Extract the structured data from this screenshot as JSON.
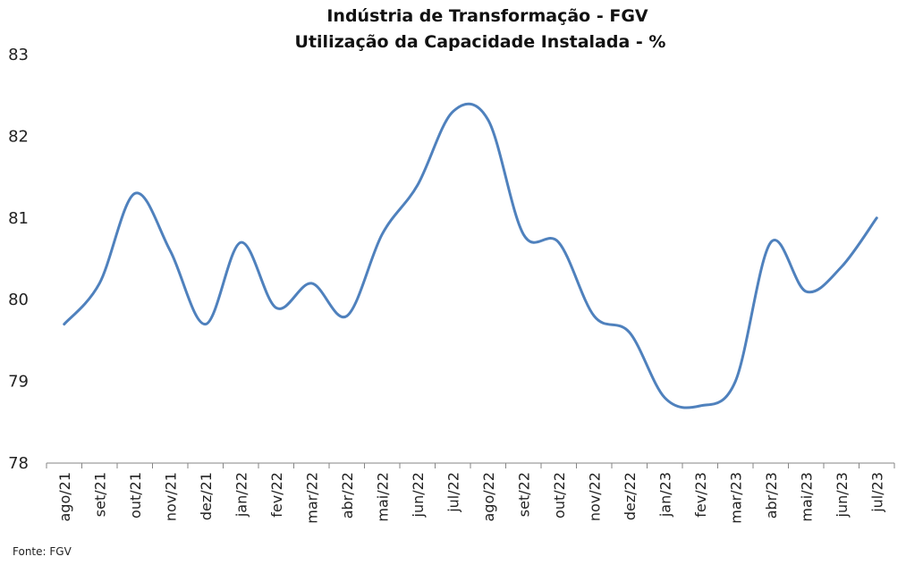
{
  "chart_data": {
    "type": "line",
    "title_lines": [
      "Indústria de Transformação - FGV",
      "Utilização da Capacidade Instalada - %"
    ],
    "xlabel": "",
    "ylabel": "",
    "categories": [
      "ago/21",
      "set/21",
      "out/21",
      "nov/21",
      "dez/21",
      "jan/22",
      "fev/22",
      "mar/22",
      "abr/22",
      "mai/22",
      "jun/22",
      "jul/22",
      "ago/22",
      "set/22",
      "out/22",
      "nov/22",
      "dez/22",
      "jan/23",
      "fev/23",
      "mar/23",
      "abr/23",
      "mai/23",
      "jun/23",
      "jul/23"
    ],
    "series": [
      {
        "values": [
          79.7,
          80.2,
          81.3,
          80.6,
          79.7,
          80.7,
          79.9,
          80.2,
          79.8,
          80.8,
          81.4,
          82.3,
          82.2,
          80.8,
          80.7,
          79.8,
          79.6,
          78.8,
          78.7,
          79.0,
          80.7,
          80.1,
          80.4,
          81.0
        ],
        "color": "#4f81bd"
      }
    ],
    "ylim": [
      78,
      83
    ],
    "yticks": [
      78,
      79,
      80,
      81,
      82,
      83
    ],
    "grid": false,
    "legend": "none"
  },
  "source_note": "Fonte: FGV"
}
